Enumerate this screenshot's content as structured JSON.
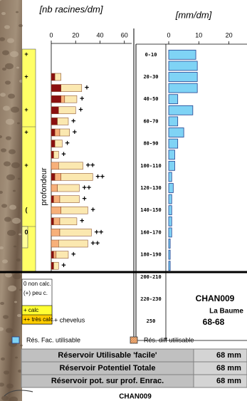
{
  "chart_data": [
    {
      "type": "bar",
      "orientation": "horizontal",
      "stacked": true,
      "x_label": "[nb racines/dm]",
      "y_label": "profondeur",
      "categories": [
        null,
        null,
        null,
        null,
        null,
        null,
        null,
        null,
        null,
        null,
        null,
        null,
        null,
        null,
        null,
        null,
        null,
        null,
        null,
        null
      ],
      "series": [
        {
          "color": "#8b1010",
          "values": [
            null,
            null,
            3,
            8,
            8,
            6,
            5,
            3,
            3,
            2,
            0,
            3,
            0,
            2,
            0,
            2,
            0,
            0,
            2,
            2
          ]
        },
        {
          "color": "#f7b07a",
          "values": [
            null,
            null,
            0,
            0,
            3,
            0,
            0,
            4,
            0,
            0,
            6,
            5,
            5,
            5,
            8,
            5,
            7,
            6,
            2,
            0
          ]
        },
        {
          "color": "#fbe8b0",
          "values": [
            null,
            null,
            5,
            17,
            10,
            14,
            9,
            8,
            6,
            4,
            20,
            26,
            18,
            16,
            22,
            14,
            26,
            24,
            10,
            4
          ]
        }
      ],
      "annotations": [
        null,
        null,
        null,
        "+",
        "+",
        "+",
        "+",
        "+",
        "+",
        "+",
        "++",
        "++",
        "++",
        "+",
        "+",
        "+",
        "++",
        "++",
        "+",
        "+"
      ],
      "xlim": [
        0,
        66
      ],
      "xticks": [
        0,
        20,
        40,
        60
      ]
    },
    {
      "type": "bar",
      "orientation": "horizontal",
      "x_label": "[mm/dm]",
      "categories": [
        "0-10",
        null,
        "20-30",
        null,
        "40-50",
        null,
        "60-70",
        null,
        "80-90",
        null,
        "100-110",
        null,
        "120-130",
        null,
        "140-150",
        null,
        "160-170",
        null,
        "180-190",
        null,
        "200-210",
        null,
        "220-230",
        null,
        "250",
        null
      ],
      "values": [
        9,
        9.5,
        9.5,
        9.5,
        3,
        8,
        3,
        5,
        3,
        2,
        2,
        1,
        1.5,
        1,
        1,
        1,
        1,
        0.5,
        0.5,
        0.5,
        null,
        null,
        null,
        null,
        null,
        null
      ],
      "color": "#7fd3f5",
      "xlim": [
        0,
        26
      ],
      "xticks": [
        0,
        10,
        20
      ]
    }
  ],
  "profile": {
    "symbols": [
      "+",
      null,
      "+",
      null,
      null,
      "+",
      null,
      "+",
      null,
      null,
      "+",
      null,
      null,
      null,
      "(",
      null,
      "0",
      null,
      null,
      null
    ],
    "legend": [
      "0 non calc.",
      "(+) peu c.",
      "+ calc",
      "++ très calc."
    ],
    "roots_note": "+ chevelus"
  },
  "site": {
    "code": "CHAN009",
    "name": "La Baume",
    "range": "68-68"
  },
  "legend": [
    {
      "label": "Rés. Fac. utilisable",
      "color": "#7fd3f5"
    },
    {
      "label": "Rés. diff utilisable"
    }
  ],
  "table": {
    "rows": [
      [
        "Réservoir Utilisable 'facile'",
        "68 mm"
      ],
      [
        "Réservoir Potentiel Totale",
        "68 mm"
      ],
      [
        "Réservoir pot. sur prof. Enrac.",
        "68 mm"
      ]
    ]
  },
  "footer": {
    "code": "CHAN009"
  }
}
